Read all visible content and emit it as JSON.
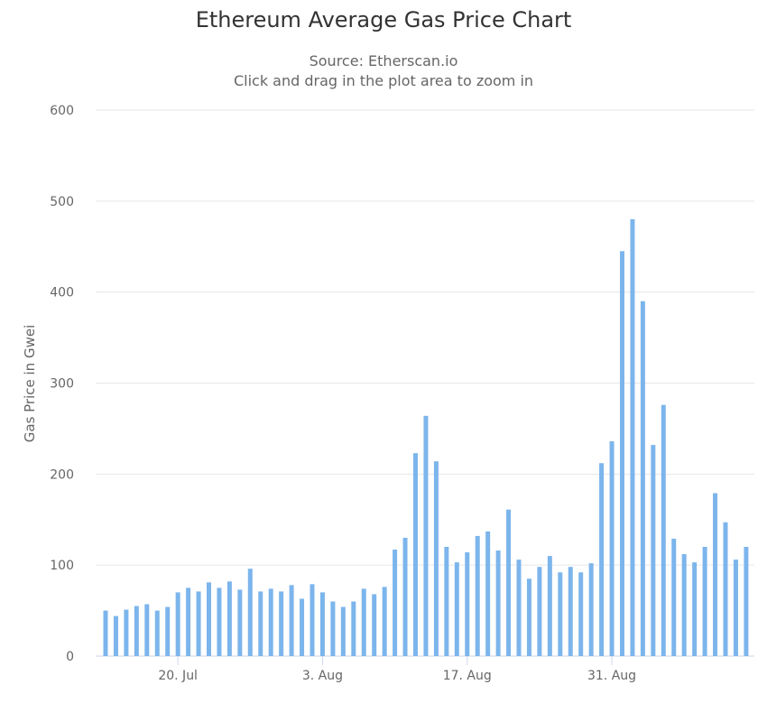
{
  "chart_data": {
    "type": "bar",
    "title": "Ethereum Average Gas Price Chart",
    "subtitle": "Source: Etherscan.io",
    "subtitle2": "Click and drag in the plot area to zoom in",
    "xlabel": "",
    "ylabel": "Gas Price in Gwei",
    "ylim": [
      0,
      600
    ],
    "yticks": [
      0,
      100,
      200,
      300,
      400,
      500,
      600
    ],
    "xticks": [
      {
        "label": "20. Jul",
        "index": 7
      },
      {
        "label": "3. Aug",
        "index": 21
      },
      {
        "label": "17. Aug",
        "index": 35
      },
      {
        "label": "31. Aug",
        "index": 49
      }
    ],
    "grid": true,
    "color": "#7cb5ec",
    "x": [
      "13 Jul",
      "14 Jul",
      "15 Jul",
      "16 Jul",
      "17 Jul",
      "18 Jul",
      "19 Jul",
      "20 Jul",
      "21 Jul",
      "22 Jul",
      "23 Jul",
      "24 Jul",
      "25 Jul",
      "26 Jul",
      "27 Jul",
      "28 Jul",
      "29 Jul",
      "30 Jul",
      "31 Jul",
      "1 Aug",
      "2 Aug",
      "3 Aug",
      "4 Aug",
      "5 Aug",
      "6 Aug",
      "7 Aug",
      "8 Aug",
      "9 Aug",
      "10 Aug",
      "11 Aug",
      "12 Aug",
      "13 Aug",
      "14 Aug",
      "15 Aug",
      "16 Aug",
      "17 Aug",
      "18 Aug",
      "19 Aug",
      "20 Aug",
      "21 Aug",
      "22 Aug",
      "23 Aug",
      "24 Aug",
      "25 Aug",
      "26 Aug",
      "27 Aug",
      "28 Aug",
      "29 Aug",
      "30 Aug",
      "31 Aug",
      "1 Sep",
      "2 Sep",
      "3 Sep",
      "4 Sep",
      "5 Sep",
      "6 Sep",
      "7 Sep",
      "8 Sep",
      "9 Sep",
      "10 Sep",
      "11 Sep",
      "12 Sep",
      "13 Sep"
    ],
    "values": [
      50,
      44,
      51,
      55,
      57,
      50,
      54,
      70,
      75,
      71,
      81,
      75,
      82,
      73,
      96,
      71,
      74,
      71,
      78,
      63,
      79,
      70,
      60,
      54,
      60,
      74,
      68,
      76,
      117,
      130,
      223,
      264,
      214,
      120,
      103,
      114,
      132,
      137,
      116,
      161,
      106,
      85,
      98,
      110,
      92,
      98,
      92,
      102,
      212,
      236,
      445,
      480,
      390,
      232,
      276,
      129,
      112,
      103,
      120,
      179,
      147,
      106,
      120
    ]
  }
}
